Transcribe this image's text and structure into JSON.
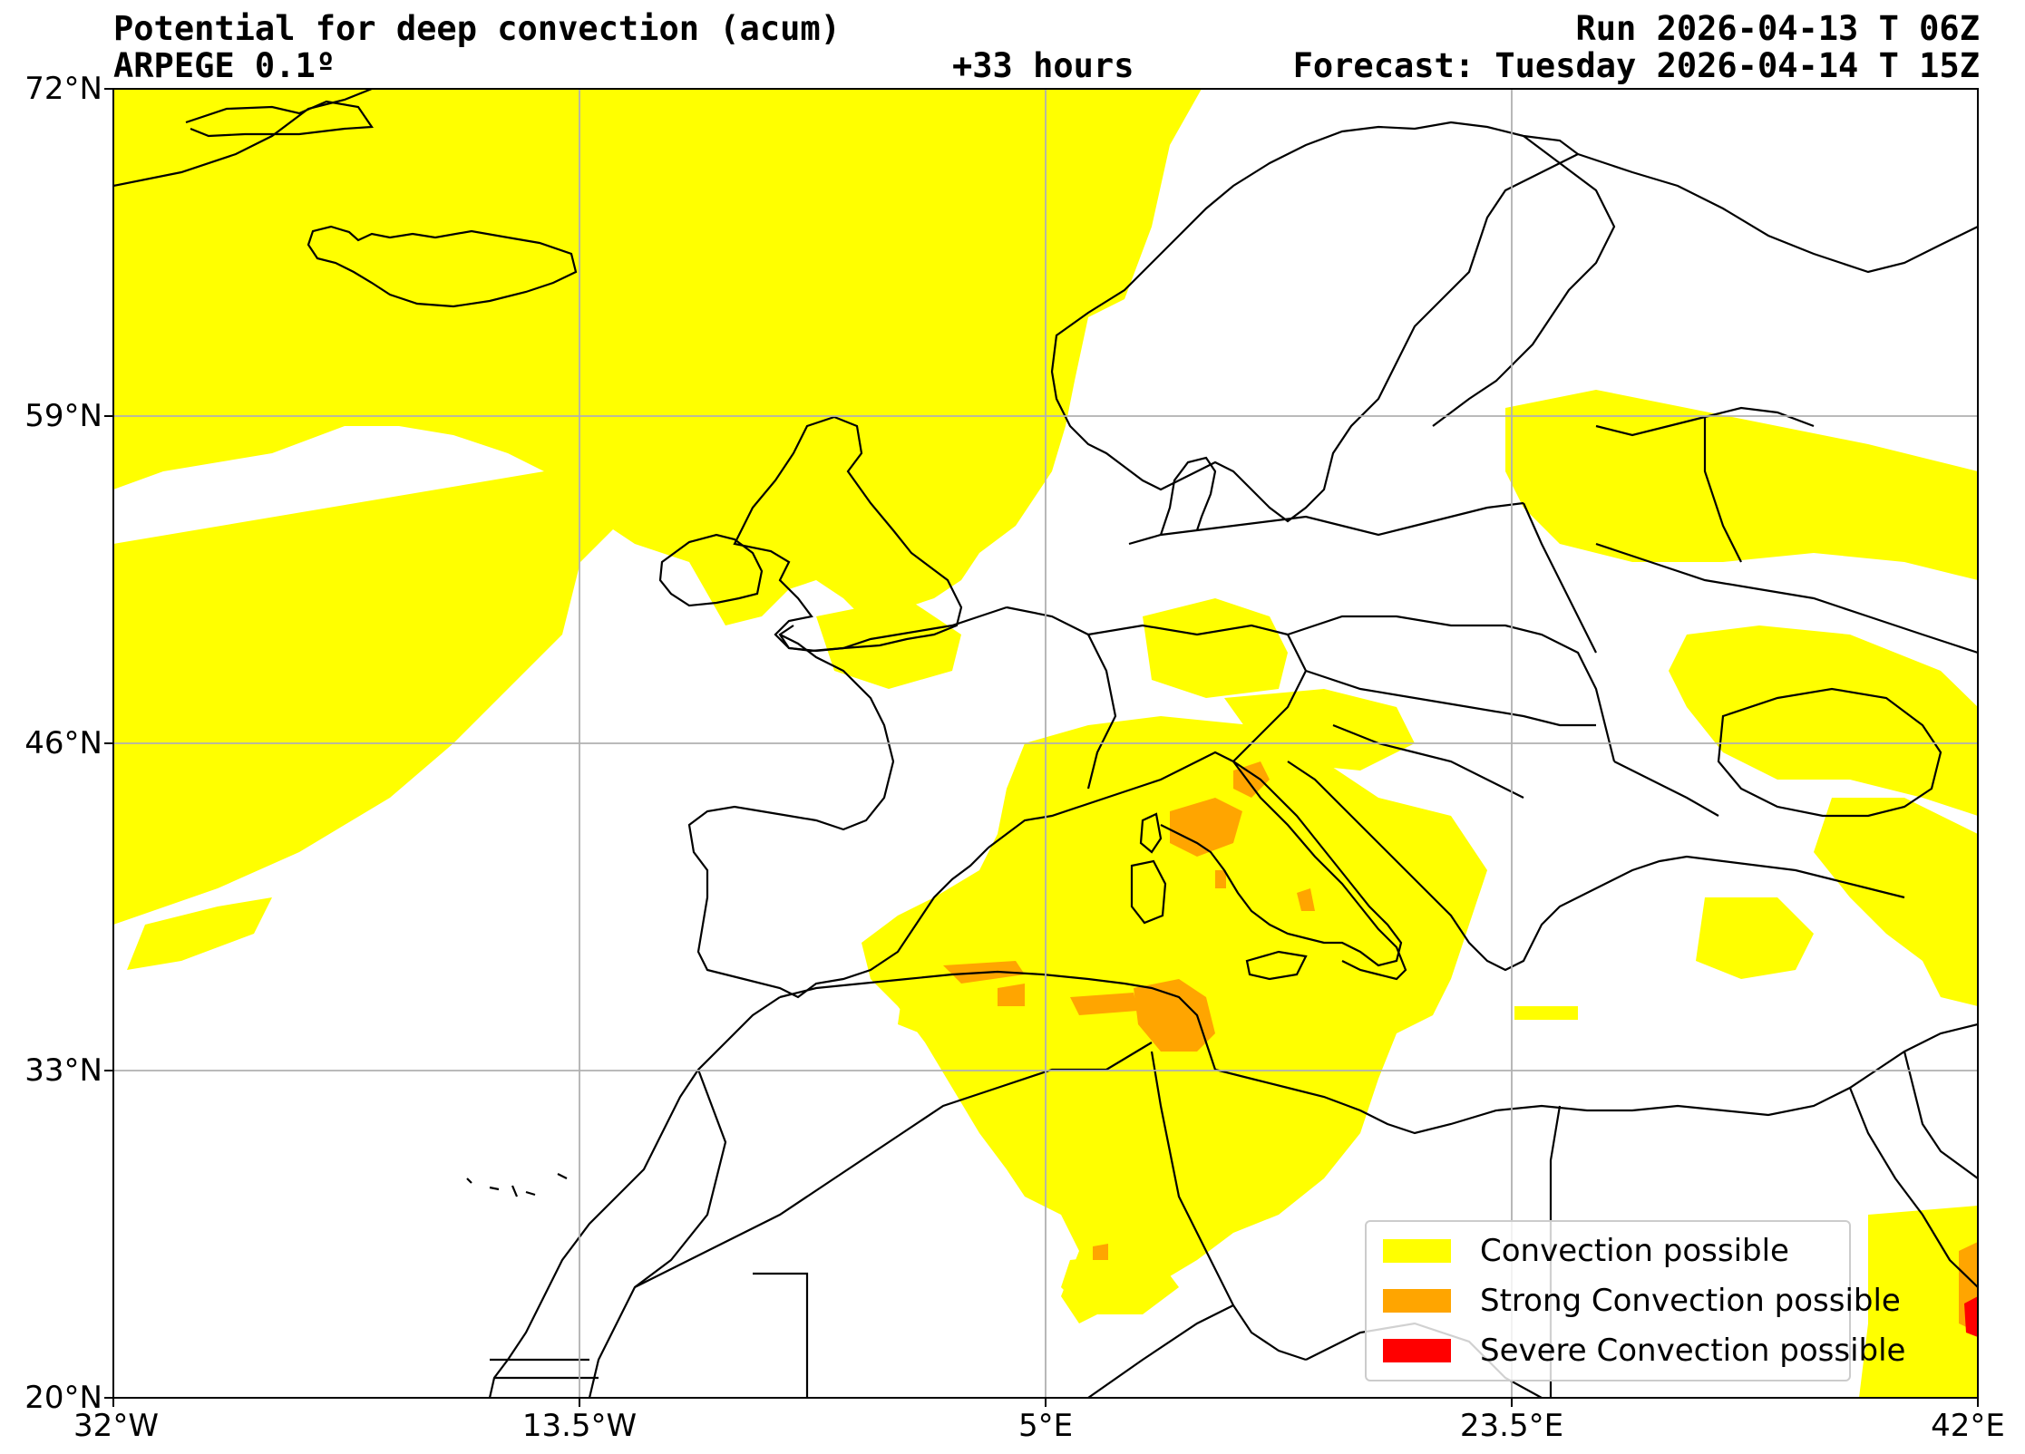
{
  "header": {
    "title": "Potential for deep convection (acum)",
    "subtitle": "ARPEGE 0.1º",
    "lead_time": "+33 hours",
    "run": "Run 2026-04-13 T 06Z",
    "forecast": "Forecast: Tuesday 2026-04-14 T 15Z"
  },
  "axes": {
    "lat_labels": [
      "72°N",
      "59°N",
      "46°N",
      "33°N",
      "20°N"
    ],
    "lon_labels": [
      "32°W",
      "13.5°W",
      "5°E",
      "23.5°E",
      "42°E"
    ],
    "lat_range": [
      20,
      72
    ],
    "lon_range": [
      -32,
      42
    ],
    "grid": true
  },
  "legend": {
    "placement": "bottom-right",
    "items": [
      {
        "label": "Convection possible",
        "color": "#ffff00"
      },
      {
        "label": "Strong Convection possible",
        "color": "#ffa500"
      },
      {
        "label": "Severe Convection possible",
        "color": "#ff0000"
      }
    ]
  },
  "colors": {
    "convection": "#ffff00",
    "strong": "#ffa500",
    "severe": "#ff0000",
    "coast": "#000000",
    "grid": "#b0b0b0"
  }
}
